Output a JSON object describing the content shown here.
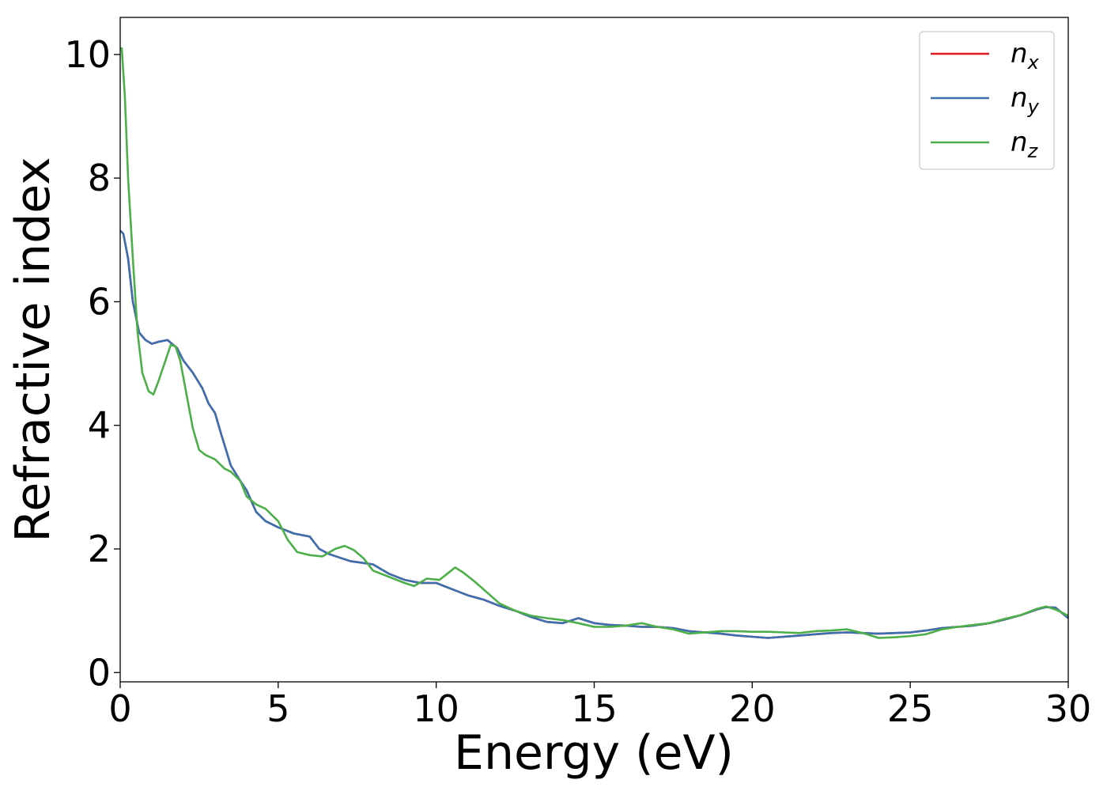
{
  "chart_data": {
    "type": "line",
    "xlabel": "Energy (eV)",
    "ylabel": "Refractive index",
    "xlim": [
      0,
      30
    ],
    "ylim": [
      -0.15,
      10.6
    ],
    "x_ticks": [
      0,
      5,
      10,
      15,
      20,
      25,
      30
    ],
    "x_tick_labels": [
      "0",
      "5",
      "10",
      "15",
      "20",
      "25",
      "30"
    ],
    "y_ticks": [
      0,
      2,
      4,
      6,
      8,
      10
    ],
    "y_tick_labels": [
      "0",
      "2",
      "4",
      "6",
      "8",
      "10"
    ],
    "grid": false,
    "legend_position": "top-right",
    "series": [
      {
        "name": "n",
        "subscript": "x",
        "color": "#e41a1c",
        "x": [
          0,
          0.1,
          0.25,
          0.4,
          0.6,
          0.8,
          1.0,
          1.2,
          1.5,
          1.8,
          2.0,
          2.3,
          2.6,
          2.8,
          3.0,
          3.2,
          3.5,
          3.8,
          4.0,
          4.3,
          4.6,
          5.0,
          5.5,
          6.0,
          6.3,
          6.6,
          7.0,
          7.3,
          7.6,
          8.0,
          8.5,
          9.0,
          9.5,
          10.0,
          10.5,
          11.0,
          11.5,
          12.0,
          12.5,
          13.0,
          13.5,
          14.0,
          14.5,
          15.0,
          15.5,
          16.0,
          16.5,
          17.0,
          17.5,
          18.0,
          18.5,
          19.0,
          19.5,
          20.0,
          20.5,
          21.0,
          21.5,
          22.0,
          22.5,
          23.0,
          23.5,
          24.0,
          24.5,
          25.0,
          25.5,
          26.0,
          26.5,
          27.0,
          27.5,
          28.0,
          28.5,
          29.0,
          29.3,
          29.6,
          30.0
        ],
        "values": [
          7.15,
          7.1,
          6.7,
          6.0,
          5.5,
          5.38,
          5.32,
          5.35,
          5.38,
          5.25,
          5.05,
          4.85,
          4.6,
          4.35,
          4.2,
          3.85,
          3.35,
          3.1,
          2.95,
          2.6,
          2.45,
          2.35,
          2.25,
          2.2,
          2.0,
          1.92,
          1.85,
          1.8,
          1.78,
          1.75,
          1.6,
          1.5,
          1.45,
          1.45,
          1.35,
          1.25,
          1.18,
          1.08,
          1.0,
          0.9,
          0.82,
          0.8,
          0.88,
          0.8,
          0.77,
          0.76,
          0.74,
          0.74,
          0.72,
          0.67,
          0.65,
          0.63,
          0.6,
          0.58,
          0.56,
          0.58,
          0.6,
          0.62,
          0.64,
          0.65,
          0.64,
          0.63,
          0.64,
          0.65,
          0.68,
          0.72,
          0.74,
          0.76,
          0.8,
          0.86,
          0.93,
          1.02,
          1.06,
          1.05,
          0.88
        ]
      },
      {
        "name": "n",
        "subscript": "y",
        "color": "#3a6fb0",
        "x": [
          0,
          0.1,
          0.25,
          0.4,
          0.6,
          0.8,
          1.0,
          1.2,
          1.5,
          1.8,
          2.0,
          2.3,
          2.6,
          2.8,
          3.0,
          3.2,
          3.5,
          3.8,
          4.0,
          4.3,
          4.6,
          5.0,
          5.5,
          6.0,
          6.3,
          6.6,
          7.0,
          7.3,
          7.6,
          8.0,
          8.5,
          9.0,
          9.5,
          10.0,
          10.5,
          11.0,
          11.5,
          12.0,
          12.5,
          13.0,
          13.5,
          14.0,
          14.5,
          15.0,
          15.5,
          16.0,
          16.5,
          17.0,
          17.5,
          18.0,
          18.5,
          19.0,
          19.5,
          20.0,
          20.5,
          21.0,
          21.5,
          22.0,
          22.5,
          23.0,
          23.5,
          24.0,
          24.5,
          25.0,
          25.5,
          26.0,
          26.5,
          27.0,
          27.5,
          28.0,
          28.5,
          29.0,
          29.3,
          29.6,
          30.0
        ],
        "values": [
          7.15,
          7.1,
          6.7,
          6.0,
          5.5,
          5.38,
          5.32,
          5.35,
          5.38,
          5.25,
          5.05,
          4.85,
          4.6,
          4.35,
          4.2,
          3.85,
          3.35,
          3.1,
          2.95,
          2.6,
          2.45,
          2.35,
          2.25,
          2.2,
          2.0,
          1.92,
          1.85,
          1.8,
          1.78,
          1.75,
          1.6,
          1.5,
          1.45,
          1.45,
          1.35,
          1.25,
          1.18,
          1.08,
          1.0,
          0.9,
          0.82,
          0.8,
          0.88,
          0.8,
          0.77,
          0.76,
          0.74,
          0.74,
          0.72,
          0.67,
          0.65,
          0.63,
          0.6,
          0.58,
          0.56,
          0.58,
          0.6,
          0.62,
          0.64,
          0.65,
          0.64,
          0.63,
          0.64,
          0.65,
          0.68,
          0.72,
          0.74,
          0.76,
          0.8,
          0.86,
          0.93,
          1.02,
          1.06,
          1.05,
          0.88
        ]
      },
      {
        "name": "n",
        "subscript": "z",
        "color": "#4daf4a",
        "x": [
          0,
          0.05,
          0.15,
          0.25,
          0.4,
          0.55,
          0.7,
          0.9,
          1.05,
          1.2,
          1.4,
          1.6,
          1.75,
          1.9,
          2.1,
          2.3,
          2.5,
          2.7,
          3.0,
          3.3,
          3.5,
          3.8,
          4.0,
          4.3,
          4.6,
          5.0,
          5.3,
          5.6,
          6.0,
          6.4,
          6.8,
          7.1,
          7.4,
          7.7,
          8.0,
          8.5,
          9.0,
          9.3,
          9.7,
          10.1,
          10.35,
          10.6,
          10.85,
          11.2,
          11.6,
          12.0,
          12.5,
          13.0,
          13.5,
          14.0,
          14.5,
          15.0,
          15.5,
          16.0,
          16.5,
          17.0,
          17.5,
          18.0,
          18.5,
          19.0,
          19.5,
          20.0,
          20.5,
          21.0,
          21.5,
          22.0,
          22.5,
          23.0,
          23.5,
          24.0,
          24.5,
          25.0,
          25.5,
          26.0,
          26.5,
          27.0,
          27.5,
          28.0,
          28.5,
          29.0,
          29.3,
          29.6,
          30.0
        ],
        "values": [
          10.1,
          10.1,
          9.3,
          8.0,
          6.7,
          5.5,
          4.85,
          4.55,
          4.5,
          4.7,
          5.0,
          5.3,
          5.28,
          5.05,
          4.5,
          3.95,
          3.6,
          3.52,
          3.45,
          3.3,
          3.25,
          3.1,
          2.85,
          2.72,
          2.65,
          2.45,
          2.15,
          1.95,
          1.9,
          1.88,
          2.0,
          2.05,
          1.98,
          1.85,
          1.65,
          1.55,
          1.45,
          1.4,
          1.52,
          1.5,
          1.6,
          1.7,
          1.62,
          1.48,
          1.3,
          1.12,
          1.0,
          0.92,
          0.88,
          0.85,
          0.8,
          0.74,
          0.74,
          0.76,
          0.8,
          0.74,
          0.7,
          0.63,
          0.65,
          0.67,
          0.67,
          0.66,
          0.66,
          0.65,
          0.64,
          0.67,
          0.68,
          0.7,
          0.64,
          0.56,
          0.57,
          0.59,
          0.62,
          0.7,
          0.74,
          0.77,
          0.8,
          0.87,
          0.93,
          1.03,
          1.07,
          1.02,
          0.92
        ]
      }
    ]
  }
}
